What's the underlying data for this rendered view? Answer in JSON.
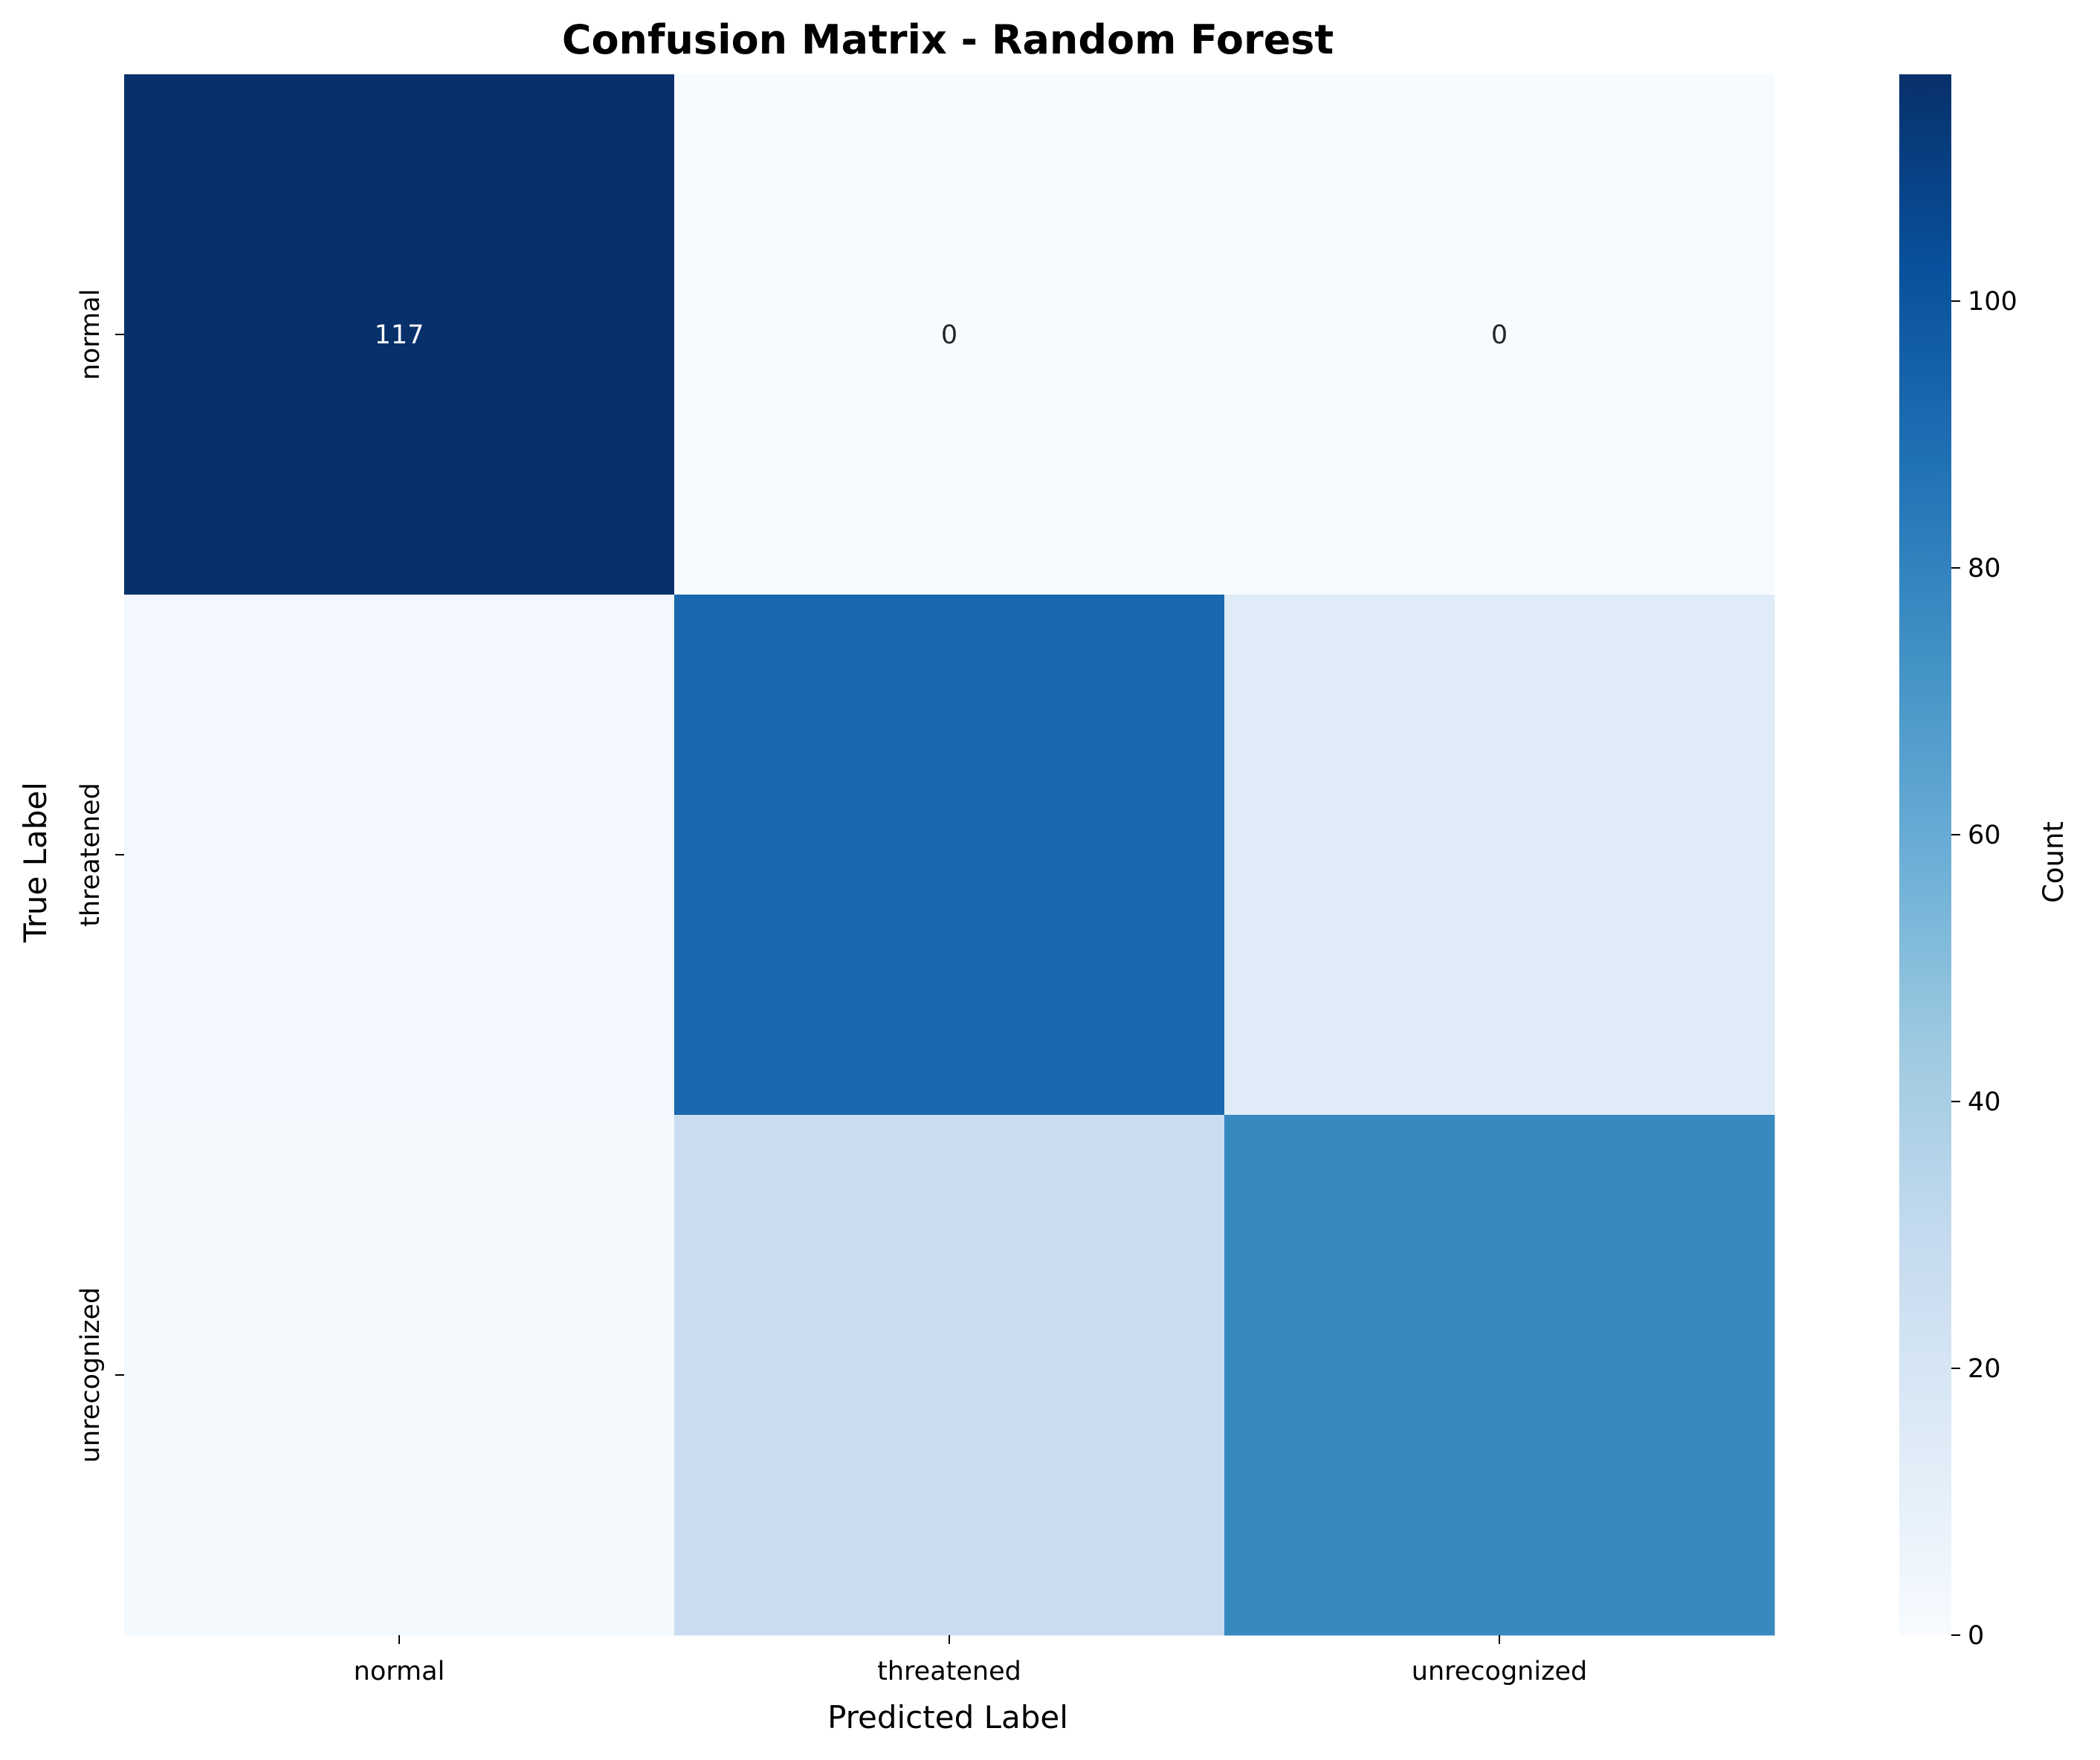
{
  "chart_data": {
    "type": "heatmap",
    "title": "Confusion Matrix - Random Forest",
    "xlabel": "Predicted Label",
    "ylabel": "True Label",
    "x_categories": [
      "normal",
      "threatened",
      "unrecognized"
    ],
    "y_categories": [
      "normal",
      "threatened",
      "unrecognized"
    ],
    "values": [
      [
        117,
        0,
        0
      ],
      [
        3,
        92,
        14
      ],
      [
        2,
        27,
        77
      ]
    ],
    "annotations": [
      [
        "117",
        "0",
        "0"
      ],
      [
        "",
        "",
        ""
      ],
      [
        "",
        "",
        ""
      ]
    ],
    "colorbar": {
      "label": "Count",
      "range": [
        0,
        117
      ],
      "ticks": [
        0,
        20,
        40,
        60,
        80,
        100
      ]
    },
    "colormap": "Blues",
    "colormap_stops": [
      "#f7fbff",
      "#deebf7",
      "#c6dbef",
      "#9ecae1",
      "#6baed6",
      "#4292c6",
      "#2171b5",
      "#08519c",
      "#08306b"
    ]
  }
}
